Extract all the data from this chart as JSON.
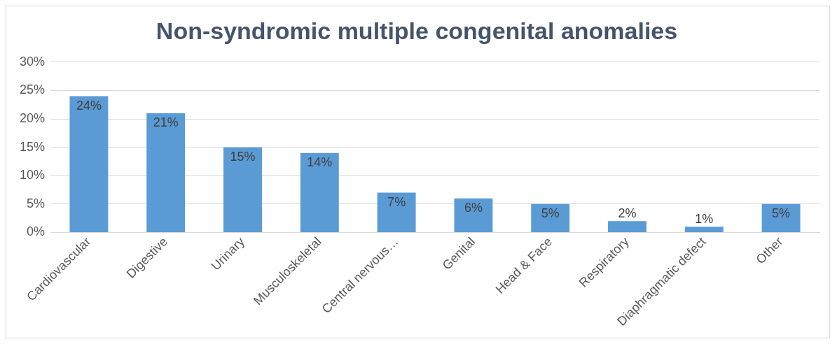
{
  "chart_data": {
    "type": "bar",
    "title": "Non-syndromic multiple congenital anomalies",
    "categories": [
      "Cardiovascular",
      "Digestive",
      "Urinary",
      "Musculoskeletal",
      "Central nervous…",
      "Genital",
      "Head & Face",
      "Respiratory",
      "Diaphragmatic defect",
      "Other"
    ],
    "values": [
      24,
      21,
      15,
      14,
      7,
      6,
      5,
      2,
      1,
      5
    ],
    "value_labels": [
      "24%",
      "21%",
      "15%",
      "14%",
      "7%",
      "6%",
      "5%",
      "2%",
      "1%",
      "5%"
    ],
    "color": "#5b9bd5",
    "ylim": [
      0,
      30
    ],
    "yticks": [
      {
        "value": 0,
        "label": "0%"
      },
      {
        "value": 5,
        "label": "5%"
      },
      {
        "value": 10,
        "label": "10%"
      },
      {
        "value": 15,
        "label": "15%"
      },
      {
        "value": 20,
        "label": "20%"
      },
      {
        "value": 25,
        "label": "25%"
      },
      {
        "value": 30,
        "label": "30%"
      }
    ],
    "grid": "y"
  }
}
